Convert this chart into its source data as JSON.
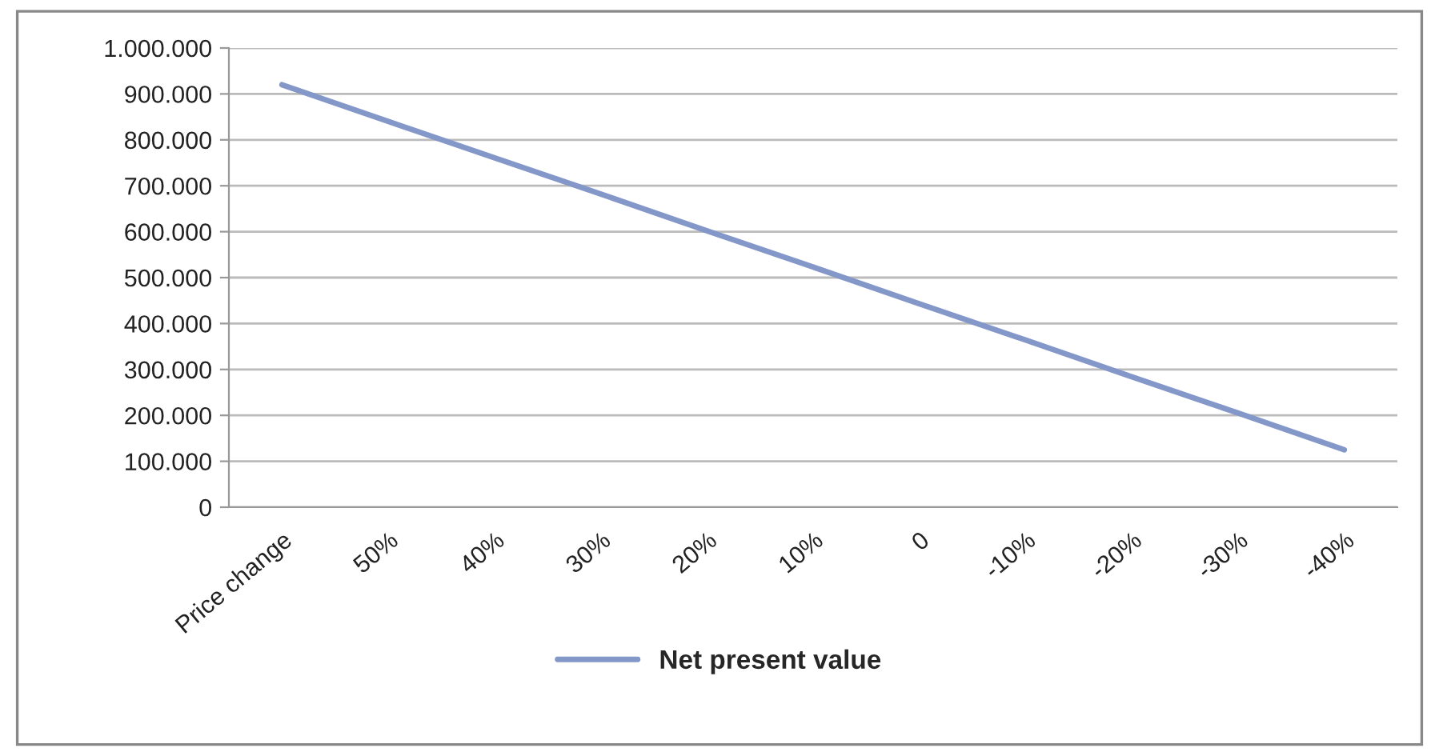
{
  "chart_data": {
    "type": "line",
    "categories": [
      "Price change",
      "50%",
      "40%",
      "30%",
      "20%",
      "10%",
      "0",
      "-10%",
      "-20%",
      "-30%",
      "-40%"
    ],
    "series": [
      {
        "name": "Net present value",
        "color": "#8497c9",
        "values": [
          920000,
          840000,
          761000,
          682000,
          602000,
          523000,
          443000,
          364000,
          284000,
          205000,
          125000
        ]
      }
    ],
    "ylim": [
      0,
      1000000
    ],
    "yticks": [
      {
        "value": 0,
        "label": "0"
      },
      {
        "value": 100000,
        "label": "100.000"
      },
      {
        "value": 200000,
        "label": "200.000"
      },
      {
        "value": 300000,
        "label": "300.000"
      },
      {
        "value": 400000,
        "label": "400.000"
      },
      {
        "value": 500000,
        "label": "500.000"
      },
      {
        "value": 600000,
        "label": "600.000"
      },
      {
        "value": 700000,
        "label": "700.000"
      },
      {
        "value": 800000,
        "label": "800.000"
      },
      {
        "value": 900000,
        "label": "900.000"
      },
      {
        "value": 1000000,
        "label": "1.000.000"
      }
    ],
    "grid": "y",
    "legend": "bottom",
    "marker": "none",
    "line_style": "solid"
  }
}
